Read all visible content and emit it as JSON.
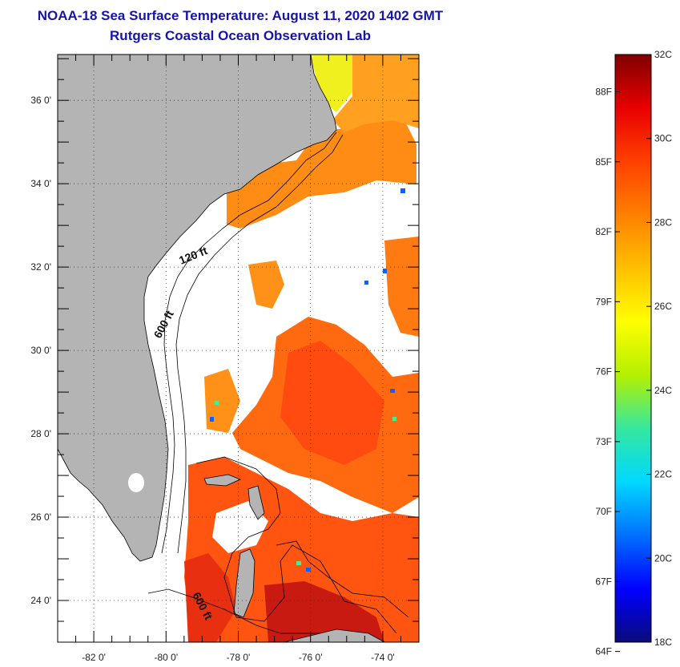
{
  "title_line1": "NOAA-18 Sea Surface Temperature:  August 11, 2020 1402 GMT",
  "title_line2": "Rutgers Coastal Ocean Observation Lab",
  "map": {
    "lat_labels": [
      "36 0'",
      "34 0'",
      "32 0'",
      "30 0'",
      "28 0'",
      "26 0'",
      "24 0'"
    ],
    "lat_values": [
      36,
      34,
      32,
      30,
      28,
      26,
      24
    ],
    "lon_labels": [
      "-82 0'",
      "-80 0'",
      "-78 0'",
      "-76 0'",
      "-74 0'"
    ],
    "lon_values": [
      -82,
      -80,
      -78,
      -76,
      -74
    ],
    "lat_range": [
      23,
      37.1
    ],
    "lon_range": [
      -83,
      -73
    ],
    "contour_labels": [
      "120 ft",
      "600 ft",
      "600 ft"
    ],
    "colors": {
      "land": "#b4b4b4",
      "no_data": "#ffffff"
    }
  },
  "colorbar": {
    "celsius_labels": [
      "32C",
      "30C",
      "28C",
      "26C",
      "24C",
      "22C",
      "20C",
      "18C"
    ],
    "celsius_values": [
      32,
      30,
      28,
      26,
      24,
      22,
      20,
      18
    ],
    "fahrenheit_labels": [
      "88F",
      "85F",
      "82F",
      "79F",
      "76F",
      "73F",
      "70F",
      "67F",
      "64F"
    ],
    "fahrenheit_values": [
      88,
      85,
      82,
      79,
      76,
      73,
      70,
      67,
      64
    ],
    "range_c": [
      18,
      32
    ],
    "gradient": [
      "#0a0a7a",
      "#0000ff",
      "#0070ff",
      "#00d8ff",
      "#35e8a0",
      "#b4f000",
      "#ffff00",
      "#ffc000",
      "#ff8000",
      "#ff4000",
      "#e80000",
      "#800000"
    ]
  }
}
